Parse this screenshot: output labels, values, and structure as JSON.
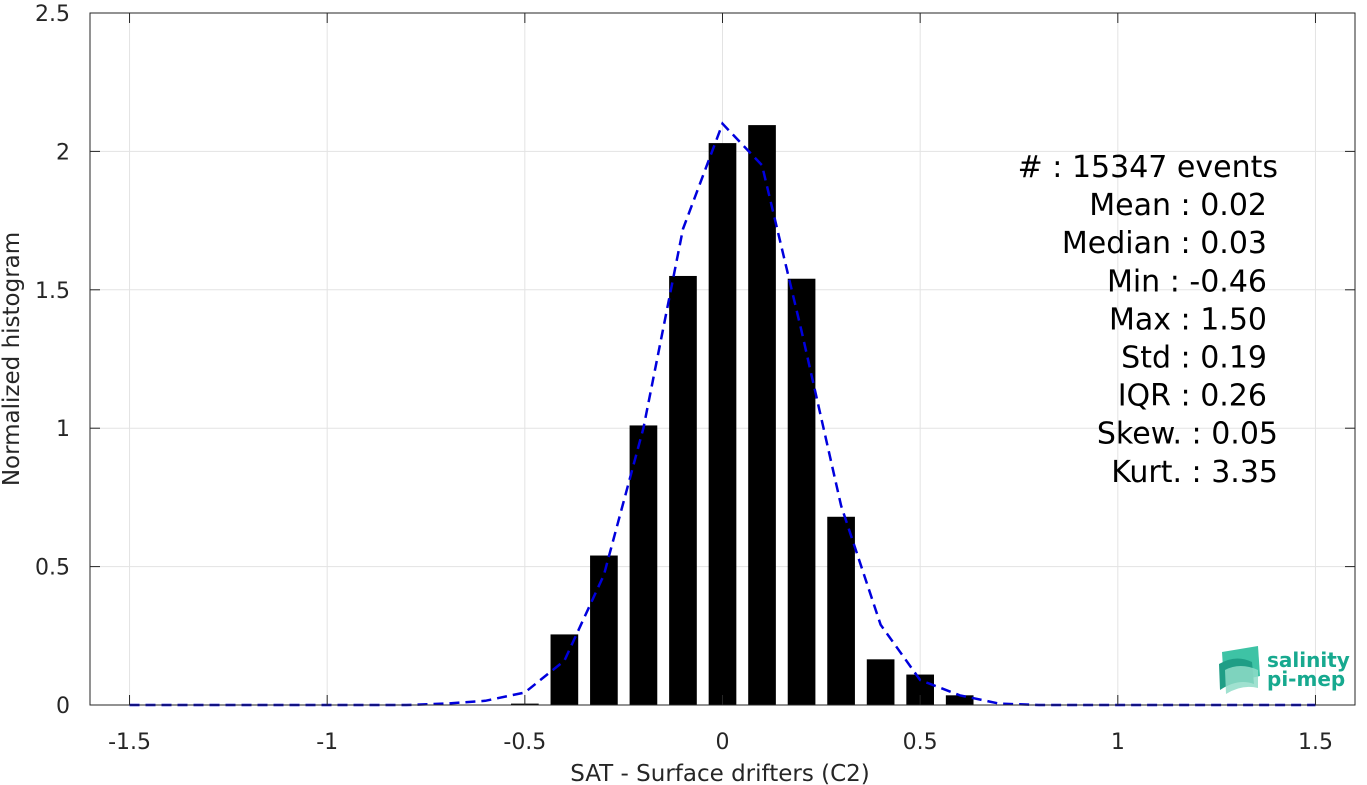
{
  "chart_data": {
    "type": "bar",
    "xlabel": "SAT - Surface drifters (C2)",
    "ylabel": "Normalized histogram",
    "xlim": [
      -1.6,
      1.6
    ],
    "ylim": [
      0,
      2.5
    ],
    "x_ticks": [
      "-1.5",
      "-1",
      "-0.5",
      "0",
      "0.5",
      "1",
      "1.5"
    ],
    "x_tick_values": [
      -1.5,
      -1,
      -0.5,
      0,
      0.5,
      1,
      1.5
    ],
    "y_ticks": [
      "0",
      "0.5",
      "1",
      "1.5",
      "2",
      "2.5"
    ],
    "y_tick_values": [
      0,
      0.5,
      1,
      1.5,
      2,
      2.5
    ],
    "grid": true,
    "bar_color": "#000000",
    "bars": {
      "bin_width": 0.1,
      "x": [
        -0.5,
        -0.4,
        -0.3,
        -0.2,
        -0.1,
        0.0,
        0.1,
        0.2,
        0.3,
        0.4,
        0.5,
        0.6
      ],
      "values": [
        0.005,
        0.255,
        0.54,
        1.01,
        1.55,
        2.03,
        2.095,
        1.54,
        0.68,
        0.165,
        0.11,
        0.035
      ]
    },
    "fit_line": {
      "style": "dashed",
      "color": "#0000dd",
      "x": [
        -1.5,
        -1.4,
        -1.3,
        -1.2,
        -1.1,
        -1.0,
        -0.9,
        -0.8,
        -0.7,
        -0.6,
        -0.5,
        -0.4,
        -0.3,
        -0.2,
        -0.1,
        0.0,
        0.1,
        0.2,
        0.3,
        0.4,
        0.5,
        0.6,
        0.7,
        0.8,
        0.9,
        1.0,
        1.1,
        1.2,
        1.3,
        1.4,
        1.5
      ],
      "y": [
        0,
        0,
        0,
        0,
        0,
        0,
        0,
        0,
        0.005,
        0.015,
        0.045,
        0.16,
        0.47,
        1.0,
        1.72,
        2.1,
        1.95,
        1.35,
        0.72,
        0.29,
        0.09,
        0.035,
        0.005,
        0,
        0,
        0,
        0,
        0,
        0,
        0,
        0
      ]
    },
    "annotations": [
      "#  : 15347 events",
      "Mean : 0.02",
      "Median : 0.03",
      "Min : -0.46",
      "Max : 1.50",
      "Std : 0.19",
      "IQR : 0.26",
      "Skew. : 0.05",
      "Kurt. : 3.35"
    ]
  },
  "logo": {
    "line1": "salinity",
    "line2": "pi-mep",
    "color": "#17a98f"
  }
}
